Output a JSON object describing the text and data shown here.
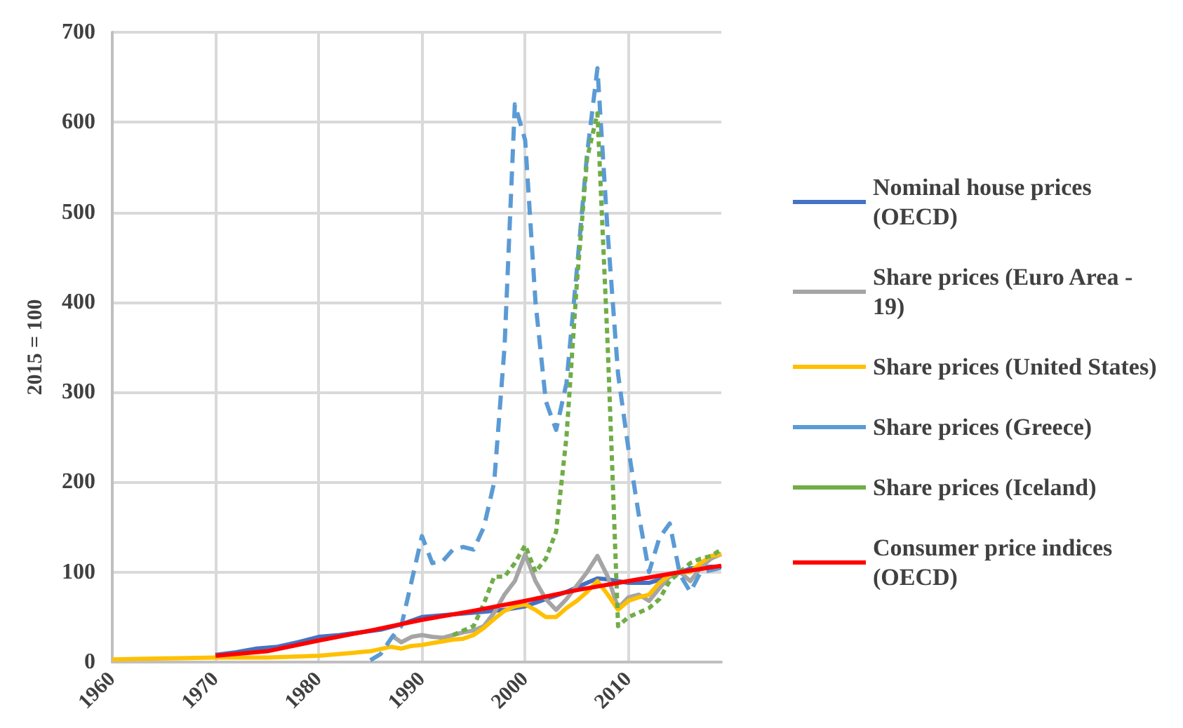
{
  "chart_data": {
    "type": "line",
    "ylabel": "2015 = 100",
    "xlim": [
      1960,
      2019
    ],
    "xticks": [
      1960,
      1970,
      1980,
      1990,
      2000,
      2010
    ],
    "ylim": [
      0,
      700
    ],
    "yticks": [
      0,
      100,
      200,
      300,
      400,
      500,
      600,
      700
    ],
    "grid": true,
    "legend": "right",
    "marker": "none",
    "series": [
      {
        "name": "Nominal house prices (OECD)",
        "color": "#4472c4",
        "line_style": "solid",
        "x": [
          1970,
          1972,
          1974,
          1976,
          1978,
          1980,
          1982,
          1984,
          1986,
          1988,
          1990,
          1992,
          1994,
          1996,
          1998,
          2000,
          2002,
          2004,
          2006,
          2007,
          2008,
          2010,
          2012,
          2014,
          2016,
          2018,
          2019
        ],
        "values": [
          8,
          11,
          15,
          17,
          22,
          28,
          30,
          33,
          36,
          42,
          50,
          52,
          54,
          56,
          58,
          62,
          70,
          78,
          88,
          93,
          92,
          88,
          88,
          95,
          104,
          106,
          105
        ]
      },
      {
        "name": "Share prices (Euro Area - 19)",
        "color": "#a5a5a5",
        "line_style": "solid",
        "x": [
          1987,
          1988,
          1989,
          1990,
          1991,
          1992,
          1993,
          1994,
          1995,
          1996,
          1997,
          1998,
          1999,
          2000,
          2001,
          2002,
          2003,
          2004,
          2005,
          2006,
          2007,
          2008,
          2009,
          2010,
          2011,
          2012,
          2013,
          2014,
          2015,
          2016,
          2017,
          2018,
          2019
        ],
        "values": [
          30,
          22,
          28,
          30,
          28,
          27,
          30,
          33,
          35,
          40,
          55,
          75,
          90,
          120,
          90,
          70,
          58,
          70,
          85,
          100,
          118,
          95,
          60,
          72,
          75,
          68,
          82,
          95,
          100,
          90,
          105,
          115,
          120
        ]
      },
      {
        "name": "Share prices (United States)",
        "color": "#ffc000",
        "line_style": "solid",
        "x": [
          1960,
          1965,
          1970,
          1975,
          1980,
          1983,
          1985,
          1987,
          1988,
          1989,
          1990,
          1991,
          1992,
          1993,
          1994,
          1995,
          1996,
          1997,
          1998,
          1999,
          2000,
          2001,
          2002,
          2003,
          2004,
          2005,
          2006,
          2007,
          2008,
          2009,
          2010,
          2011,
          2012,
          2013,
          2014,
          2015,
          2016,
          2017,
          2018,
          2019
        ],
        "values": [
          3,
          4,
          5,
          5,
          7,
          10,
          12,
          17,
          15,
          18,
          19,
          21,
          23,
          25,
          26,
          30,
          38,
          48,
          57,
          62,
          64,
          58,
          50,
          50,
          60,
          68,
          78,
          90,
          75,
          58,
          68,
          72,
          75,
          88,
          97,
          100,
          100,
          110,
          118,
          120
        ]
      },
      {
        "name": "Share prices (Greece)",
        "color": "#5b9bd5",
        "line_style": "dashed",
        "x": [
          1985,
          1986,
          1987,
          1988,
          1989,
          1990,
          1991,
          1992,
          1993,
          1994,
          1995,
          1996,
          1997,
          1998,
          1999,
          2000,
          2001,
          2002,
          2003,
          2004,
          2005,
          2006,
          2007,
          2008,
          2009,
          2010,
          2011,
          2012,
          2013,
          2014,
          2015,
          2016,
          2017,
          2018,
          2019
        ],
        "values": [
          2,
          9,
          26,
          40,
          90,
          140,
          110,
          112,
          125,
          128,
          125,
          150,
          200,
          350,
          620,
          580,
          400,
          290,
          258,
          310,
          435,
          565,
          660,
          476,
          320,
          237,
          164,
          100,
          138,
          154,
          97,
          78,
          100,
          102,
          105
        ]
      },
      {
        "name": "Share prices (Iceland)",
        "color": "#70ad47",
        "line_style": "dotted",
        "x": [
          1993,
          1994,
          1995,
          1996,
          1997,
          1998,
          1999,
          2000,
          2001,
          2002,
          2003,
          2004,
          2005,
          2006,
          2007,
          2008,
          2009,
          2010,
          2011,
          2012,
          2013,
          2014,
          2015,
          2016,
          2017,
          2018,
          2019
        ],
        "values": [
          30,
          35,
          40,
          65,
          95,
          95,
          110,
          130,
          100,
          115,
          145,
          250,
          420,
          560,
          610,
          350,
          40,
          50,
          55,
          60,
          70,
          90,
          100,
          110,
          115,
          118,
          125
        ]
      },
      {
        "name": "Consumer price indices (OECD)",
        "color": "#ff0000",
        "line_style": "solid",
        "x": [
          1970,
          1975,
          1980,
          1985,
          1990,
          1995,
          2000,
          2005,
          2010,
          2015,
          2019
        ],
        "values": [
          7,
          12,
          24,
          35,
          47,
          57,
          68,
          80,
          90,
          100,
          107
        ]
      }
    ]
  }
}
